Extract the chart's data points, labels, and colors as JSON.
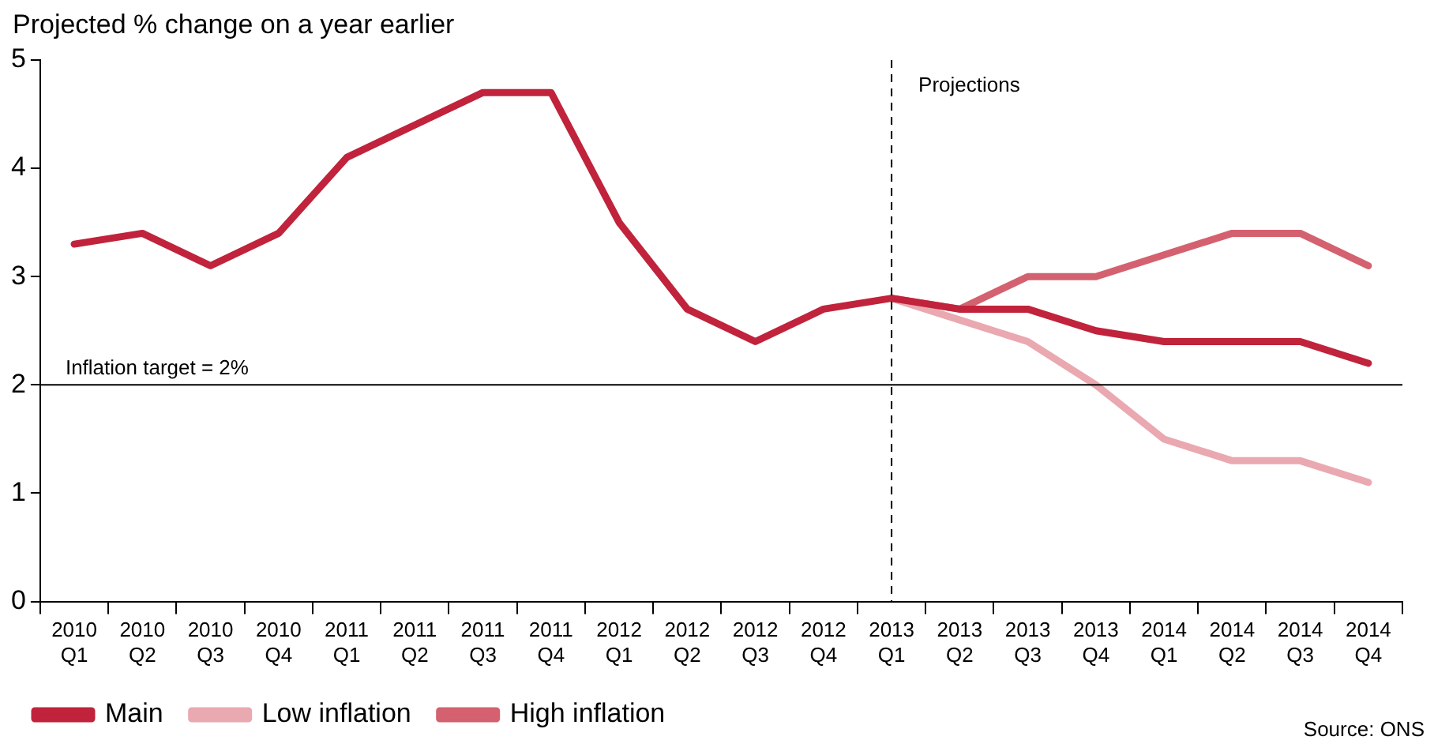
{
  "chart_data": {
    "type": "line",
    "ylabel": "Projected % change on a year earlier",
    "categories": [
      "2010 Q1",
      "2010 Q2",
      "2010 Q3",
      "2010 Q4",
      "2011 Q1",
      "2011 Q2",
      "2011 Q3",
      "2011 Q4",
      "2012 Q1",
      "2012 Q2",
      "2012 Q3",
      "2012 Q4",
      "2013 Q1",
      "2013 Q2",
      "2013 Q3",
      "2013 Q4",
      "2014 Q1",
      "2014 Q2",
      "2014 Q3",
      "2014 Q4"
    ],
    "series": [
      {
        "name": "Main",
        "color": "#c0233b",
        "values": [
          3.3,
          3.4,
          3.1,
          3.4,
          4.1,
          4.4,
          4.7,
          4.7,
          3.5,
          2.7,
          2.4,
          2.7,
          2.8,
          2.7,
          2.7,
          2.5,
          2.4,
          2.4,
          2.4,
          2.2
        ]
      },
      {
        "name": "Low inflation",
        "color": "#eaa8b0",
        "values": [
          null,
          null,
          null,
          null,
          null,
          null,
          null,
          null,
          null,
          null,
          null,
          null,
          2.8,
          2.6,
          2.4,
          2.0,
          1.5,
          1.3,
          1.3,
          1.1
        ]
      },
      {
        "name": "High inflation",
        "color": "#d4616f",
        "values": [
          null,
          null,
          null,
          null,
          null,
          null,
          null,
          null,
          null,
          null,
          null,
          null,
          2.8,
          2.7,
          3.0,
          3.0,
          3.2,
          3.4,
          3.4,
          3.1
        ]
      }
    ],
    "ylim": [
      0,
      5
    ],
    "yticks": [
      0,
      1,
      2,
      3,
      4,
      5
    ],
    "grid": false,
    "legend": "bottom left",
    "marker": "none",
    "line_style": "solid",
    "ref_lines": [
      {
        "axis": "y",
        "value": 2,
        "label": "Inflation target = 2%",
        "color": "#000000",
        "line_style": "solid"
      },
      {
        "axis": "x",
        "value": "2013 Q1",
        "label": "Projections",
        "color": "#000000",
        "line_style": "dashed"
      }
    ],
    "annotations": [
      "Source: ONS"
    ]
  }
}
